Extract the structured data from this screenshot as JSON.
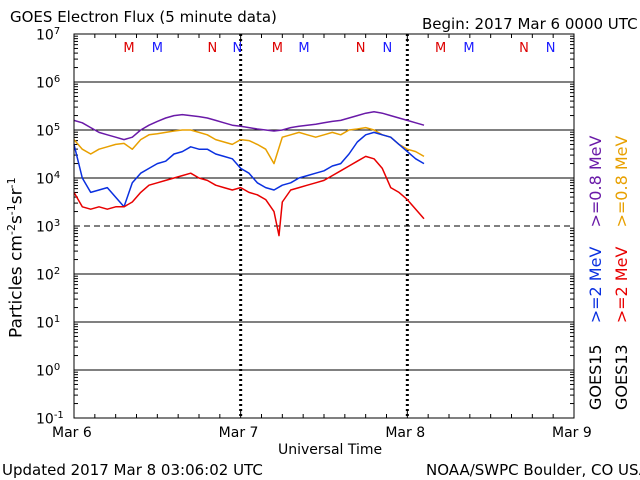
{
  "chart_data": {
    "type": "line",
    "title": "GOES Electron Flux (5 minute data)",
    "begin_label": "Begin: 2017 Mar 6 0000 UTC",
    "updated": "Updated 2017 Mar  8 03:06:02 UTC",
    "credit": "NOAA/SWPC Boulder, CO USA",
    "xlabel": "Universal Time",
    "ylabel": "Particles cm",
    "ylabel_sup1": "-2",
    "ylabel_mid1": "s",
    "ylabel_sup2": "-1",
    "ylabel_mid2": "sr",
    "ylabel_sup3": "-1",
    "yscale": "log",
    "ylim_exp": [
      -1,
      7
    ],
    "xlim_days": [
      0,
      3
    ],
    "x_ticks": [
      {
        "label": "Mar 6",
        "day": 0
      },
      {
        "label": "Mar 7",
        "day": 1
      },
      {
        "label": "Mar 8",
        "day": 2
      },
      {
        "label": "Mar 9",
        "day": 3
      }
    ],
    "y_ticks": [
      {
        "base": "10",
        "exp": "7",
        "value": 7
      },
      {
        "base": "10",
        "exp": "6",
        "value": 6
      },
      {
        "base": "10",
        "exp": "5",
        "value": 5
      },
      {
        "base": "10",
        "exp": "4",
        "value": 4
      },
      {
        "base": "10",
        "exp": "3",
        "value": 3
      },
      {
        "base": "10",
        "exp": "2",
        "value": 2
      },
      {
        "base": "10",
        "exp": "1",
        "value": 1
      },
      {
        "base": "10",
        "exp": "0",
        "value": 0
      },
      {
        "base": "10",
        "exp": "-1",
        "value": -1
      }
    ],
    "threshold_exp": 3,
    "magnetopause_markers": [
      {
        "label": "M",
        "day": 0.33,
        "color": "#dd0000"
      },
      {
        "label": "M",
        "day": 0.5,
        "color": "#1a1aff"
      },
      {
        "label": "N",
        "day": 0.83,
        "color": "#dd0000"
      },
      {
        "label": "N",
        "day": 0.98,
        "color": "#1a1aff"
      },
      {
        "label": "M",
        "day": 1.22,
        "color": "#dd0000"
      },
      {
        "label": "M",
        "day": 1.38,
        "color": "#1a1aff"
      },
      {
        "label": "N",
        "day": 1.72,
        "color": "#dd0000"
      },
      {
        "label": "N",
        "day": 1.88,
        "color": "#1a1aff"
      },
      {
        "label": "M",
        "day": 2.2,
        "color": "#dd0000"
      },
      {
        "label": "M",
        "day": 2.37,
        "color": "#1a1aff"
      },
      {
        "label": "N",
        "day": 2.7,
        "color": "#dd0000"
      },
      {
        "label": "N",
        "day": 2.86,
        "color": "#1a1aff"
      }
    ],
    "series": [
      {
        "name": "GOES15 >=0.8 MeV",
        "color": "#6a1aa8",
        "points": [
          [
            0,
            5.2
          ],
          [
            0.05,
            5.15
          ],
          [
            0.1,
            5.05
          ],
          [
            0.15,
            4.95
          ],
          [
            0.2,
            4.9
          ],
          [
            0.25,
            4.85
          ],
          [
            0.3,
            4.8
          ],
          [
            0.35,
            4.85
          ],
          [
            0.4,
            5.0
          ],
          [
            0.45,
            5.1
          ],
          [
            0.5,
            5.18
          ],
          [
            0.55,
            5.25
          ],
          [
            0.6,
            5.3
          ],
          [
            0.65,
            5.32
          ],
          [
            0.7,
            5.3
          ],
          [
            0.75,
            5.28
          ],
          [
            0.8,
            5.25
          ],
          [
            0.85,
            5.2
          ],
          [
            0.9,
            5.15
          ],
          [
            0.95,
            5.1
          ],
          [
            1.0,
            5.08
          ],
          [
            1.05,
            5.05
          ],
          [
            1.1,
            5.02
          ],
          [
            1.15,
            5.0
          ],
          [
            1.2,
            4.98
          ],
          [
            1.25,
            5.0
          ],
          [
            1.3,
            5.05
          ],
          [
            1.35,
            5.08
          ],
          [
            1.4,
            5.1
          ],
          [
            1.45,
            5.12
          ],
          [
            1.5,
            5.15
          ],
          [
            1.55,
            5.18
          ],
          [
            1.6,
            5.2
          ],
          [
            1.65,
            5.25
          ],
          [
            1.7,
            5.3
          ],
          [
            1.75,
            5.35
          ],
          [
            1.8,
            5.38
          ],
          [
            1.85,
            5.35
          ],
          [
            1.9,
            5.3
          ],
          [
            1.95,
            5.25
          ],
          [
            2.0,
            5.2
          ],
          [
            2.05,
            5.15
          ],
          [
            2.1,
            5.1
          ]
        ]
      },
      {
        "name": "GOES13 >=0.8 MeV",
        "color": "#e8a000",
        "points": [
          [
            0,
            4.8
          ],
          [
            0.05,
            4.6
          ],
          [
            0.1,
            4.5
          ],
          [
            0.15,
            4.6
          ],
          [
            0.2,
            4.65
          ],
          [
            0.25,
            4.7
          ],
          [
            0.3,
            4.72
          ],
          [
            0.35,
            4.6
          ],
          [
            0.4,
            4.8
          ],
          [
            0.45,
            4.9
          ],
          [
            0.5,
            4.92
          ],
          [
            0.55,
            4.95
          ],
          [
            0.6,
            4.98
          ],
          [
            0.65,
            5.0
          ],
          [
            0.7,
            5.0
          ],
          [
            0.75,
            4.95
          ],
          [
            0.8,
            4.9
          ],
          [
            0.85,
            4.8
          ],
          [
            0.9,
            4.75
          ],
          [
            0.95,
            4.7
          ],
          [
            1.0,
            4.8
          ],
          [
            1.05,
            4.78
          ],
          [
            1.1,
            4.7
          ],
          [
            1.15,
            4.6
          ],
          [
            1.2,
            4.3
          ],
          [
            1.25,
            4.85
          ],
          [
            1.3,
            4.9
          ],
          [
            1.35,
            4.95
          ],
          [
            1.4,
            4.9
          ],
          [
            1.45,
            4.85
          ],
          [
            1.5,
            4.9
          ],
          [
            1.55,
            4.95
          ],
          [
            1.6,
            4.9
          ],
          [
            1.65,
            5.0
          ],
          [
            1.7,
            5.02
          ],
          [
            1.75,
            5.05
          ],
          [
            1.8,
            5.0
          ],
          [
            1.85,
            4.9
          ],
          [
            1.9,
            4.85
          ],
          [
            1.95,
            4.7
          ],
          [
            2.0,
            4.6
          ],
          [
            2.05,
            4.55
          ],
          [
            2.1,
            4.45
          ]
        ]
      },
      {
        "name": "GOES15 >=2 MeV",
        "color": "#0a30e0",
        "points": [
          [
            0,
            4.7
          ],
          [
            0.05,
            4.0
          ],
          [
            0.1,
            3.7
          ],
          [
            0.15,
            3.75
          ],
          [
            0.2,
            3.8
          ],
          [
            0.25,
            3.6
          ],
          [
            0.3,
            3.4
          ],
          [
            0.35,
            3.9
          ],
          [
            0.4,
            4.1
          ],
          [
            0.45,
            4.2
          ],
          [
            0.5,
            4.3
          ],
          [
            0.55,
            4.35
          ],
          [
            0.6,
            4.5
          ],
          [
            0.65,
            4.55
          ],
          [
            0.7,
            4.65
          ],
          [
            0.75,
            4.6
          ],
          [
            0.8,
            4.6
          ],
          [
            0.85,
            4.5
          ],
          [
            0.9,
            4.45
          ],
          [
            0.95,
            4.4
          ],
          [
            1.0,
            4.2
          ],
          [
            1.05,
            4.1
          ],
          [
            1.1,
            3.9
          ],
          [
            1.15,
            3.8
          ],
          [
            1.2,
            3.75
          ],
          [
            1.25,
            3.85
          ],
          [
            1.3,
            3.9
          ],
          [
            1.35,
            4.0
          ],
          [
            1.4,
            4.05
          ],
          [
            1.45,
            4.1
          ],
          [
            1.5,
            4.15
          ],
          [
            1.55,
            4.25
          ],
          [
            1.6,
            4.3
          ],
          [
            1.65,
            4.5
          ],
          [
            1.7,
            4.75
          ],
          [
            1.75,
            4.9
          ],
          [
            1.8,
            4.95
          ],
          [
            1.85,
            4.9
          ],
          [
            1.9,
            4.85
          ],
          [
            1.95,
            4.7
          ],
          [
            2.0,
            4.55
          ],
          [
            2.05,
            4.4
          ],
          [
            2.1,
            4.3
          ]
        ]
      },
      {
        "name": "GOES13 >=2 MeV",
        "color": "#e80000",
        "points": [
          [
            0,
            3.7
          ],
          [
            0.05,
            3.4
          ],
          [
            0.1,
            3.35
          ],
          [
            0.15,
            3.4
          ],
          [
            0.2,
            3.35
          ],
          [
            0.25,
            3.4
          ],
          [
            0.3,
            3.4
          ],
          [
            0.35,
            3.5
          ],
          [
            0.4,
            3.7
          ],
          [
            0.45,
            3.85
          ],
          [
            0.5,
            3.9
          ],
          [
            0.55,
            3.95
          ],
          [
            0.6,
            4.0
          ],
          [
            0.65,
            4.05
          ],
          [
            0.7,
            4.1
          ],
          [
            0.75,
            4.0
          ],
          [
            0.8,
            3.95
          ],
          [
            0.85,
            3.85
          ],
          [
            0.9,
            3.8
          ],
          [
            0.95,
            3.75
          ],
          [
            1.0,
            3.8
          ],
          [
            1.05,
            3.7
          ],
          [
            1.1,
            3.65
          ],
          [
            1.15,
            3.55
          ],
          [
            1.2,
            3.3
          ],
          [
            1.23,
            2.8
          ],
          [
            1.25,
            3.5
          ],
          [
            1.3,
            3.75
          ],
          [
            1.35,
            3.8
          ],
          [
            1.4,
            3.85
          ],
          [
            1.45,
            3.9
          ],
          [
            1.5,
            3.95
          ],
          [
            1.55,
            4.05
          ],
          [
            1.6,
            4.15
          ],
          [
            1.65,
            4.25
          ],
          [
            1.7,
            4.35
          ],
          [
            1.75,
            4.45
          ],
          [
            1.8,
            4.4
          ],
          [
            1.85,
            4.2
          ],
          [
            1.9,
            3.8
          ],
          [
            1.95,
            3.7
          ],
          [
            2.0,
            3.55
          ],
          [
            2.05,
            3.35
          ],
          [
            2.1,
            3.15
          ]
        ]
      }
    ],
    "legend": [
      {
        "sat": "GOES15",
        "energy": ">=2 MeV",
        "energy_color": "#0a30e0"
      },
      {
        "sat": "GOES13",
        "energy": ">=2 MeV",
        "energy_color": "#e80000"
      },
      {
        "sat_row1": "GOES15",
        "energy": ">=0.8 MeV",
        "energy_color": "#6a1aa8"
      },
      {
        "sat_row2": "GOES13",
        "energy": ">=0.8 MeV",
        "energy_color": "#e8a000"
      }
    ],
    "legend_labels": {
      "goes15_2": ">=2",
      "goes13_2": ">=2",
      "goes15_08": ">=0.8",
      "goes13_08": ">=0.8",
      "mev": "MeV",
      "goes15": "GOES15",
      "goes13": "GOES13"
    }
  }
}
